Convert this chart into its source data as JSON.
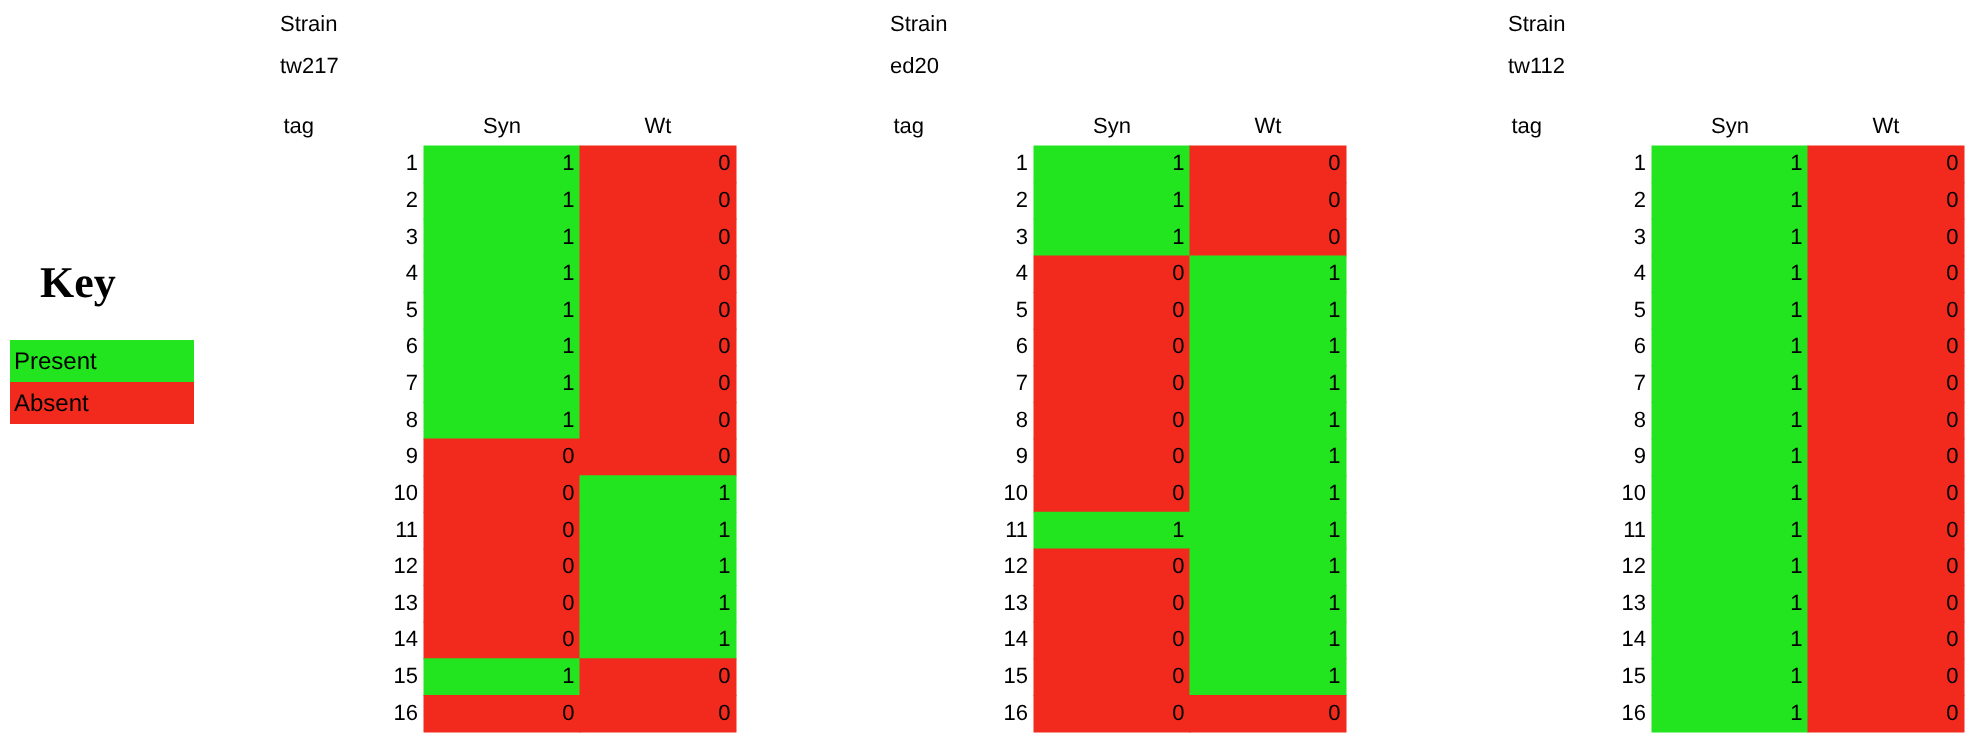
{
  "chart_data": [
    {
      "type": "other",
      "title": "Key",
      "categories": [
        "Present",
        "Absent"
      ],
      "colors": [
        "#22e51f",
        "#f22a1e"
      ]
    },
    {
      "type": "heatmap",
      "title": "Strain",
      "subtitle": "tw217",
      "ylabel": "tag",
      "data_labels": true,
      "categories": [
        "Syn",
        "Wt"
      ],
      "y_categories": [
        "1",
        "2",
        "3",
        "4",
        "5",
        "6",
        "7",
        "8",
        "9",
        "10",
        "11",
        "12",
        "13",
        "14",
        "15",
        "16"
      ],
      "cells": [
        [
          1,
          0
        ],
        [
          1,
          0
        ],
        [
          1,
          0
        ],
        [
          1,
          0
        ],
        [
          1,
          0
        ],
        [
          1,
          0
        ],
        [
          1,
          0
        ],
        [
          1,
          0
        ],
        [
          0,
          0
        ],
        [
          0,
          1
        ],
        [
          0,
          1
        ],
        [
          0,
          1
        ],
        [
          0,
          1
        ],
        [
          0,
          1
        ],
        [
          1,
          0
        ],
        [
          0,
          0
        ]
      ]
    },
    {
      "type": "heatmap",
      "title": "Strain",
      "subtitle": "ed20",
      "ylabel": "tag",
      "data_labels": true,
      "categories": [
        "Syn",
        "Wt"
      ],
      "y_categories": [
        "1",
        "2",
        "3",
        "4",
        "5",
        "6",
        "7",
        "8",
        "9",
        "10",
        "11",
        "12",
        "13",
        "14",
        "15",
        "16"
      ],
      "cells": [
        [
          1,
          0
        ],
        [
          1,
          0
        ],
        [
          1,
          0
        ],
        [
          0,
          1
        ],
        [
          0,
          1
        ],
        [
          0,
          1
        ],
        [
          0,
          1
        ],
        [
          0,
          1
        ],
        [
          0,
          1
        ],
        [
          0,
          1
        ],
        [
          1,
          1
        ],
        [
          0,
          1
        ],
        [
          0,
          1
        ],
        [
          0,
          1
        ],
        [
          0,
          1
        ],
        [
          0,
          0
        ]
      ]
    },
    {
      "type": "heatmap",
      "title": "Strain",
      "subtitle": "tw112",
      "ylabel": "tag",
      "data_labels": true,
      "categories": [
        "Syn",
        "Wt"
      ],
      "y_categories": [
        "1",
        "2",
        "3",
        "4",
        "5",
        "6",
        "7",
        "8",
        "9",
        "10",
        "11",
        "12",
        "13",
        "14",
        "15",
        "16"
      ],
      "cells": [
        [
          1,
          0
        ],
        [
          1,
          0
        ],
        [
          1,
          0
        ],
        [
          1,
          0
        ],
        [
          1,
          0
        ],
        [
          1,
          0
        ],
        [
          1,
          0
        ],
        [
          1,
          0
        ],
        [
          1,
          0
        ],
        [
          1,
          0
        ],
        [
          1,
          0
        ],
        [
          1,
          0
        ],
        [
          1,
          0
        ],
        [
          1,
          0
        ],
        [
          1,
          0
        ],
        [
          1,
          0
        ]
      ]
    }
  ]
}
